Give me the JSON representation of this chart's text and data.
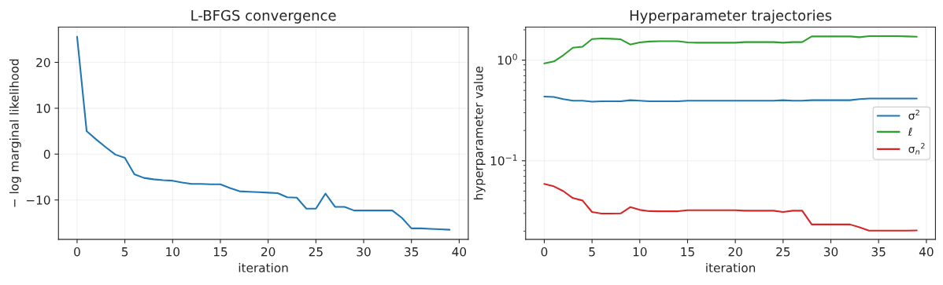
{
  "chart_data": [
    {
      "type": "line",
      "title": "L-BFGS convergence",
      "xlabel": "iteration",
      "ylabel": "− log marginal likelihood",
      "x": [
        0,
        1,
        2,
        3,
        4,
        5,
        6,
        7,
        8,
        9,
        10,
        11,
        12,
        13,
        14,
        15,
        16,
        17,
        18,
        19,
        20,
        21,
        22,
        23,
        24,
        25,
        26,
        27,
        28,
        29,
        30,
        31,
        32,
        33,
        34,
        35,
        36,
        37,
        38,
        39
      ],
      "series": [
        {
          "color": "#1f77b4",
          "values": [
            25.6,
            5.0,
            3.2,
            1.5,
            -0.1,
            -0.8,
            -4.4,
            -5.2,
            -5.5,
            -5.7,
            -5.8,
            -6.2,
            -6.5,
            -6.5,
            -6.6,
            -6.6,
            -7.4,
            -8.1,
            -8.2,
            -8.3,
            -8.4,
            -8.5,
            -9.4,
            -9.5,
            -11.9,
            -11.9,
            -8.6,
            -11.5,
            -11.5,
            -12.3,
            -12.3,
            -12.3,
            -12.3,
            -12.3,
            -13.9,
            -16.2,
            -16.2,
            -16.3,
            -16.4,
            -16.5
          ]
        }
      ],
      "xlim": [
        -1.95,
        40.95
      ],
      "xticks": [
        0,
        5,
        10,
        15,
        20,
        25,
        30,
        35,
        40
      ],
      "ylim": [
        -18.6,
        27.7
      ],
      "yticks": [
        {
          "value": -10,
          "label": "−10"
        },
        0,
        10,
        20
      ],
      "grid": true,
      "legend": false
    },
    {
      "type": "line",
      "title": "Hyperparameter trajectories",
      "xlabel": "iteration",
      "ylabel": "hyperparameter value",
      "x": [
        0,
        1,
        2,
        3,
        4,
        5,
        6,
        7,
        8,
        9,
        10,
        11,
        12,
        13,
        14,
        15,
        16,
        17,
        18,
        19,
        20,
        21,
        22,
        23,
        24,
        25,
        26,
        27,
        28,
        29,
        30,
        31,
        32,
        33,
        34,
        35,
        36,
        37,
        38,
        39
      ],
      "series": [
        {
          "name": "σ$^{2}$",
          "color": "#1f77b4",
          "values": [
            0.434,
            0.43,
            0.41,
            0.395,
            0.395,
            0.386,
            0.39,
            0.39,
            0.39,
            0.4,
            0.395,
            0.39,
            0.39,
            0.39,
            0.39,
            0.395,
            0.395,
            0.395,
            0.395,
            0.395,
            0.395,
            0.395,
            0.395,
            0.395,
            0.395,
            0.4,
            0.395,
            0.395,
            0.4,
            0.4,
            0.4,
            0.4,
            0.4,
            0.41,
            0.415,
            0.415,
            0.415,
            0.415,
            0.415,
            0.415
          ]
        },
        {
          "name": "ℓ",
          "color": "#2ca02c",
          "values": [
            0.927,
            0.97,
            1.12,
            1.33,
            1.36,
            1.62,
            1.64,
            1.63,
            1.61,
            1.43,
            1.5,
            1.53,
            1.54,
            1.54,
            1.54,
            1.5,
            1.49,
            1.49,
            1.49,
            1.49,
            1.49,
            1.51,
            1.51,
            1.51,
            1.51,
            1.49,
            1.51,
            1.51,
            1.72,
            1.72,
            1.72,
            1.72,
            1.72,
            1.69,
            1.73,
            1.73,
            1.73,
            1.73,
            1.72,
            1.71
          ]
        },
        {
          "name": "σ$_{n}$$^{2}$",
          "color": "#d62728",
          "values": [
            0.0588,
            0.0557,
            0.0499,
            0.0426,
            0.0403,
            0.031,
            0.0299,
            0.0299,
            0.03,
            0.0346,
            0.0325,
            0.0316,
            0.0315,
            0.0315,
            0.0315,
            0.0323,
            0.0323,
            0.0323,
            0.0323,
            0.0323,
            0.0323,
            0.0319,
            0.0319,
            0.0319,
            0.0319,
            0.031,
            0.0319,
            0.0319,
            0.0233,
            0.0233,
            0.0233,
            0.0233,
            0.0233,
            0.0218,
            0.0202,
            0.0202,
            0.0202,
            0.0202,
            0.0202,
            0.0203
          ]
        }
      ],
      "log": "y",
      "xlim": [
        -1.95,
        40.95
      ],
      "xticks": [
        0,
        5,
        10,
        15,
        20,
        25,
        30,
        35,
        40
      ],
      "ylim": [
        0.01655,
        2.13
      ],
      "yticks": [
        {
          "value": 0.1,
          "label": "10$^{−1}$"
        },
        {
          "value": 1,
          "label": "10$^{0}$"
        }
      ],
      "grid": true,
      "legend": "right"
    }
  ]
}
